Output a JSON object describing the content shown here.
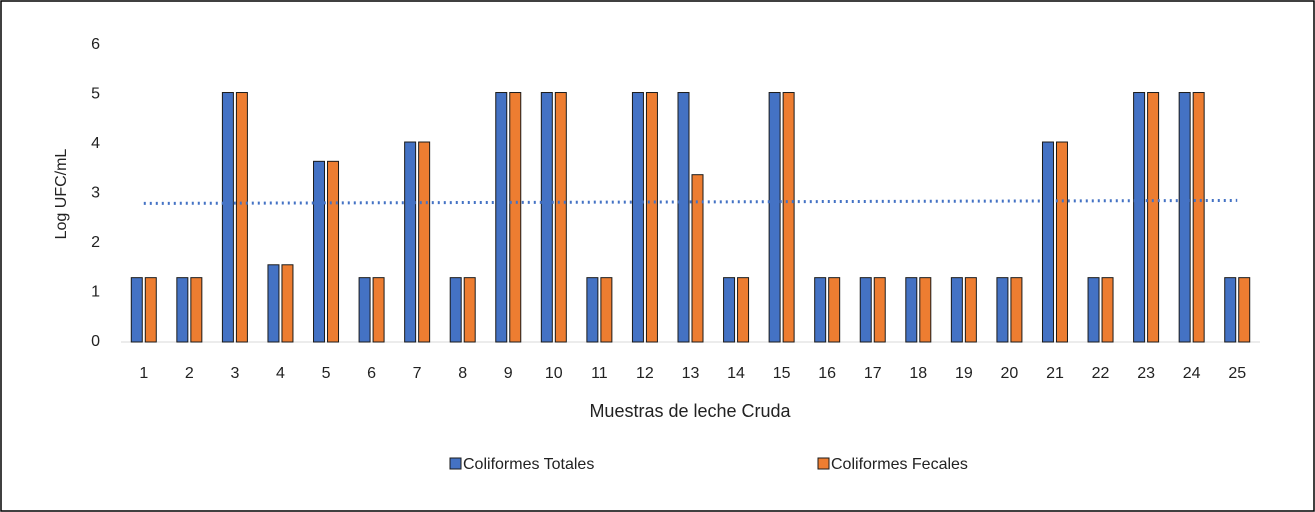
{
  "chart_data": {
    "type": "bar",
    "xlabel": "Muestras de leche Cruda",
    "ylabel": "Log UFC/mL",
    "categories": [
      "1",
      "2",
      "3",
      "4",
      "5",
      "6",
      "7",
      "8",
      "9",
      "10",
      "11",
      "12",
      "13",
      "14",
      "15",
      "16",
      "17",
      "18",
      "19",
      "20",
      "21",
      "22",
      "23",
      "24",
      "25"
    ],
    "series": [
      {
        "name": "Coliformes Totales",
        "color": "#4472c4",
        "values": [
          1.3,
          1.3,
          5.04,
          1.56,
          3.65,
          1.3,
          4.04,
          1.3,
          5.04,
          5.04,
          1.3,
          5.04,
          5.04,
          1.3,
          5.04,
          1.3,
          1.3,
          1.3,
          1.3,
          1.3,
          4.04,
          1.3,
          5.04,
          5.04,
          1.3
        ]
      },
      {
        "name": "Coliformes Fecales",
        "color": "#ed7d31",
        "values": [
          1.3,
          1.3,
          5.04,
          1.56,
          3.65,
          1.3,
          4.04,
          1.3,
          5.04,
          5.04,
          1.3,
          5.04,
          3.38,
          1.3,
          5.04,
          1.3,
          1.3,
          1.3,
          1.3,
          1.3,
          4.04,
          1.3,
          5.04,
          5.04,
          1.3
        ]
      }
    ],
    "trendline": {
      "x": [
        1,
        25
      ],
      "values": [
        2.8,
        2.86
      ],
      "color": "#4472c4"
    },
    "ylim": [
      0,
      6
    ],
    "yticks": [
      0,
      1,
      2,
      3,
      4,
      5,
      6
    ],
    "legend": "bottom"
  }
}
